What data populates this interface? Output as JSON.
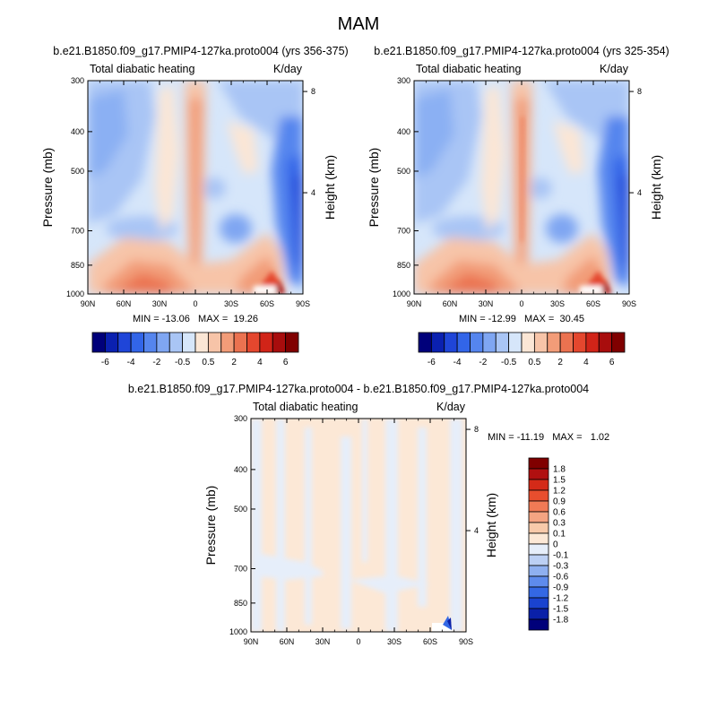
{
  "figure_title": "MAM",
  "chart_data": [
    {
      "type": "heatmap",
      "panel": "top-left",
      "title": "b.e21.B1850.f09_g17.PMIP4-127ka.proto004 (yrs 356-375)",
      "left_string": "Total diabatic heating",
      "right_string": "K/day",
      "ylabel": "Pressure (mb)",
      "ylabel_right": "Height (km)",
      "x_ticks": [
        "90N",
        "60N",
        "30N",
        "0",
        "30S",
        "60S",
        "90S"
      ],
      "y_ticks": [
        "300",
        "400",
        "500",
        "700",
        "850",
        "1000"
      ],
      "y_ticks_right": [
        "8",
        "4"
      ],
      "xlim": [
        90,
        -90
      ],
      "ylim": [
        1000,
        300
      ],
      "y_scale": "log",
      "min_max": "MIN = -13.06   MAX =  19.26",
      "colorbar_levels": [
        -8,
        -6,
        -5,
        -4,
        -3,
        -2,
        -1,
        -0.5,
        0.5,
        1,
        2,
        3,
        4,
        5,
        6,
        8
      ],
      "colorbar_labels": [
        "-6",
        "-4",
        "-2",
        "-0.5",
        "0.5",
        "2",
        "4",
        "6"
      ]
    },
    {
      "type": "heatmap",
      "panel": "top-right",
      "title": "b.e21.B1850.f09_g17.PMIP4-127ka.proto004 (yrs 325-354)",
      "left_string": "Total diabatic heating",
      "right_string": "K/day",
      "ylabel": "Pressure (mb)",
      "ylabel_right": "Height (km)",
      "x_ticks": [
        "90N",
        "60N",
        "30N",
        "0",
        "30S",
        "60S",
        "90S"
      ],
      "y_ticks": [
        "300",
        "400",
        "500",
        "700",
        "850",
        "1000"
      ],
      "y_ticks_right": [
        "8",
        "4"
      ],
      "xlim": [
        90,
        -90
      ],
      "ylim": [
        1000,
        300
      ],
      "y_scale": "log",
      "min_max": "MIN = -12.99   MAX =  30.45",
      "colorbar_levels": [
        -8,
        -6,
        -5,
        -4,
        -3,
        -2,
        -1,
        -0.5,
        0.5,
        1,
        2,
        3,
        4,
        5,
        6,
        8
      ],
      "colorbar_labels": [
        "-6",
        "-4",
        "-2",
        "-0.5",
        "0.5",
        "2",
        "4",
        "6"
      ]
    },
    {
      "type": "heatmap",
      "panel": "bottom-difference",
      "title": "b.e21.B1850.f09_g17.PMIP4-127ka.proto004 - b.e21.B1850.f09_g17.PMIP4-127ka.proto004",
      "left_string": "Total diabatic heating",
      "right_string": "K/day",
      "ylabel": "Pressure (mb)",
      "ylabel_right": "Height (km)",
      "x_ticks": [
        "90N",
        "60N",
        "30N",
        "0",
        "30S",
        "60S",
        "90S"
      ],
      "y_ticks": [
        "300",
        "400",
        "500",
        "700",
        "850",
        "1000"
      ],
      "y_ticks_right": [
        "8",
        "4"
      ],
      "xlim": [
        90,
        -90
      ],
      "ylim": [
        1000,
        300
      ],
      "y_scale": "log",
      "min_max": "MIN = -11.19   MAX =   1.02",
      "colorbar_levels": [
        -1.8,
        -1.5,
        -1.2,
        -0.9,
        -0.6,
        -0.3,
        -0.1,
        0,
        0.1,
        0.3,
        0.6,
        0.9,
        1.2,
        1.5,
        1.8
      ],
      "colorbar_labels": [
        "1.8",
        "1.5",
        "1.2",
        "0.9",
        "0.6",
        "0.3",
        "0.1",
        "0",
        "-0.1",
        "-0.3",
        "-0.6",
        "-0.9",
        "-1.2",
        "-1.5",
        "-1.8"
      ]
    }
  ],
  "colors": {
    "top_scale": [
      "#00007a",
      "#0a20b0",
      "#1f45d8",
      "#3265e8",
      "#5585ee",
      "#7fa6f2",
      "#a9c5f5",
      "#d6e6fa",
      "#fbe6d5",
      "#f7c4a8",
      "#f29c78",
      "#eb7250",
      "#e4472e",
      "#d12418",
      "#a80d0d",
      "#800000"
    ],
    "diff_scale": [
      "#800000",
      "#b01010",
      "#d42a18",
      "#e84e2e",
      "#f07a55",
      "#f4a482",
      "#f8caaa",
      "#fce8d6",
      "#e6eefa",
      "#bcd0f4",
      "#8fb0f0",
      "#5e8bec",
      "#3468e4",
      "#1a43cf",
      "#0a20a8",
      "#00007a"
    ]
  }
}
